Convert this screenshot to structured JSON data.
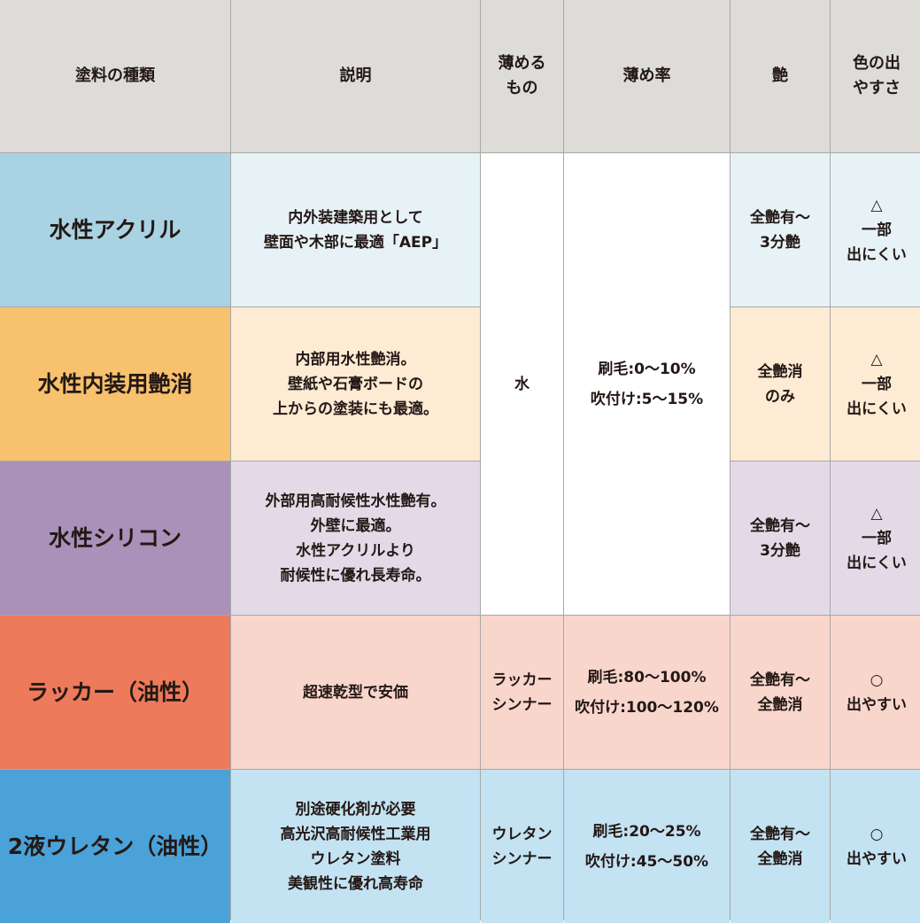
{
  "headers": [
    "塗料の種類",
    "説明",
    "薄める\nもの",
    "薄め率",
    "艶",
    "色の出\nやすさ"
  ],
  "rows": [
    {
      "type": "水性アクリル",
      "desc": "内外装建築用として\n壁面や木部に最適「AEP」",
      "gloss": "全艶有〜\n3分艶",
      "color": "△\n一部\n出にくい",
      "label_bg": "#a9d3e3",
      "cell_bg": "#e6f2f6"
    },
    {
      "type": "水性内装用艶消",
      "desc": "内部用水性艶消。\n壁紙や石膏ボードの\n上からの塗装にも最適。",
      "gloss": "全艶消\nのみ",
      "color": "△\n一部\n出にくい",
      "label_bg": "#f7c16e",
      "cell_bg": "#fdebd3"
    },
    {
      "type": "水性シリコン",
      "desc": "外部用高耐候性水性艶有。\n外壁に最適。\n水性アクリルより\n耐候性に優れ長寿命。",
      "gloss": "全艶有〜\n3分艶",
      "color": "△\n一部\n出にくい",
      "label_bg": "#a991b9",
      "cell_bg": "#e3dae8"
    },
    {
      "type": "ラッカー（油性）",
      "desc": "超速乾型で安価",
      "thinner": "ラッカー\nシンナー",
      "rate": "刷毛:80〜100%\n吹付け:100〜120%",
      "gloss": "全艶有〜\n全艶消",
      "color": "○\n出やすい",
      "label_bg": "#ed7a5a",
      "cell_bg": "#f8d6cc"
    },
    {
      "type": "2液ウレタン（油性）",
      "desc": "別途硬化剤が必要\n高光沢高耐候性工業用\nウレタン塗料\n美観性に優れ高寿命",
      "thinner": "ウレタン\nシンナー",
      "rate": "刷毛:20〜25%\n吹付け:45〜50%",
      "gloss": "全艶有〜\n全艶消",
      "color": "○\n出やすい",
      "label_bg": "#4aa2d8",
      "cell_bg": "#c3e2f2"
    }
  ],
  "water_group": {
    "thinner": "水",
    "rate": "刷毛:0〜10%\n吹付け:5〜15%"
  }
}
